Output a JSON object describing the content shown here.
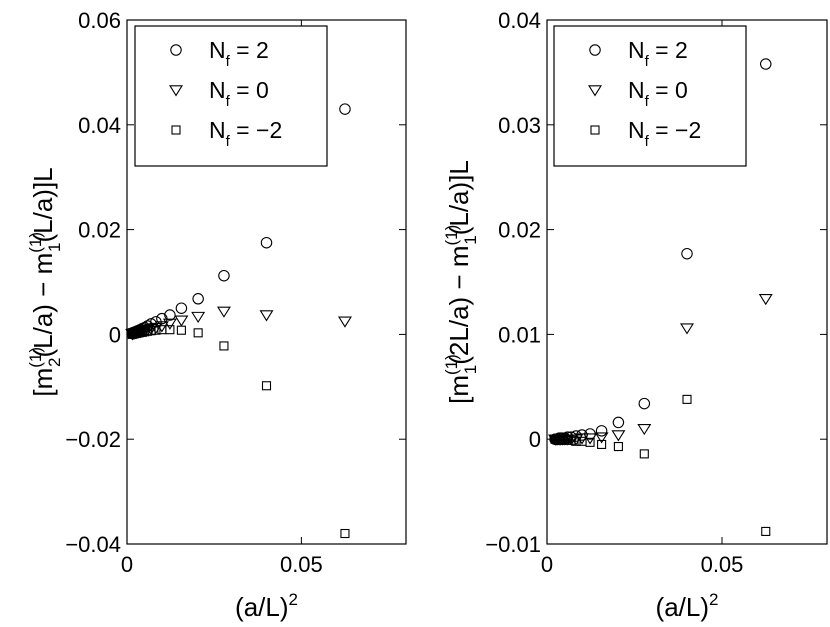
{
  "chart_data": [
    {
      "type": "scatter",
      "xlabel": "(a/L)",
      "xlabel_sup": "2",
      "ylabel_parts": [
        "[m",
        "(1)",
        "2",
        "(L/a) − m",
        "(1)",
        "1",
        "(L/a)]L"
      ],
      "xlim": [
        0,
        0.08
      ],
      "ylim": [
        -0.04,
        0.06
      ],
      "xticks": [
        0,
        0.05
      ],
      "xtick_labels": [
        "0",
        "0.05"
      ],
      "yticks": [
        -0.04,
        -0.02,
        0,
        0.02,
        0.04,
        0.06
      ],
      "ytick_labels": [
        "−0.04",
        "−0.02",
        "0",
        "0.02",
        "0.04",
        "0.06"
      ],
      "legend": {
        "position": "top-left"
      },
      "series": [
        {
          "name": "N_f = 2",
          "name_main": "N",
          "name_sub": "f",
          "name_rest": " = 2",
          "marker": "circle",
          "x": [
            0.0625,
            0.04,
            0.0278,
            0.0204,
            0.0156,
            0.0123,
            0.01,
            0.0083,
            0.0069,
            0.0059,
            0.0051,
            0.0044,
            0.0039,
            0.0035,
            0.0031,
            0.0028,
            0.0025,
            0.0023,
            0.0021,
            0.0019,
            0.0017,
            0.0016,
            0.0015
          ],
          "y": [
            0.043,
            0.0175,
            0.0112,
            0.0068,
            0.005,
            0.0037,
            0.003,
            0.0024,
            0.002,
            0.0016,
            0.0013,
            0.0011,
            0.0009,
            0.0008,
            0.0007,
            0.0006,
            0.0005,
            0.0004,
            0.0004,
            0.0003,
            0.0003,
            0.0003,
            0.0002
          ]
        },
        {
          "name": "N_f = 0",
          "name_main": "N",
          "name_sub": "f",
          "name_rest": " = 0",
          "marker": "triangle-down",
          "x": [
            0.0625,
            0.04,
            0.0278,
            0.0204,
            0.0156,
            0.0123,
            0.01,
            0.0083,
            0.0069,
            0.0059,
            0.0051,
            0.0044,
            0.0039,
            0.0035,
            0.0031,
            0.0028,
            0.0025,
            0.0023,
            0.0021,
            0.0019,
            0.0017,
            0.0016,
            0.0015
          ],
          "y": [
            0.0025,
            0.0037,
            0.0044,
            0.0034,
            0.0027,
            0.0021,
            0.0016,
            0.0013,
            0.0011,
            0.0009,
            0.0008,
            0.0007,
            0.0006,
            0.0005,
            0.0004,
            0.0004,
            0.0003,
            0.0003,
            0.0002,
            0.0002,
            0.0002,
            0.0001,
            0.0001
          ]
        },
        {
          "name": "N_f = −2",
          "name_main": "N",
          "name_sub": "f",
          "name_rest": " = −2",
          "marker": "square",
          "x": [
            0.0625,
            0.04,
            0.0278,
            0.0204,
            0.0156,
            0.0123,
            0.01,
            0.0083,
            0.0069,
            0.0059,
            0.0051,
            0.0044,
            0.0039,
            0.0035,
            0.0031,
            0.0028,
            0.0025,
            0.0023,
            0.0021,
            0.0019,
            0.0017,
            0.0016,
            0.0015
          ],
          "y": [
            -0.038,
            -0.0098,
            -0.0022,
            0.0003,
            0.0008,
            0.0009,
            0.0009,
            0.0008,
            0.0007,
            0.0006,
            0.0005,
            0.0004,
            0.0004,
            0.0003,
            0.0003,
            0.0002,
            0.0002,
            0.0002,
            0.0001,
            0.0001,
            0.0001,
            0.0001,
            0.0
          ]
        }
      ]
    },
    {
      "type": "scatter",
      "xlabel": "(a/L)",
      "xlabel_sup": "2",
      "ylabel_parts": [
        "[m",
        "(1)",
        "1",
        "(2L/a) − m",
        "(1)",
        "1",
        "(L/a)]L"
      ],
      "xlim": [
        0,
        0.08
      ],
      "ylim": [
        -0.01,
        0.04
      ],
      "xticks": [
        0,
        0.05
      ],
      "xtick_labels": [
        "0",
        "0.05"
      ],
      "yticks": [
        -0.01,
        0,
        0.01,
        0.02,
        0.03,
        0.04
      ],
      "ytick_labels": [
        "−0.01",
        "0",
        "0.01",
        "0.02",
        "0.03",
        "0.04"
      ],
      "legend": {
        "position": "top-left"
      },
      "series": [
        {
          "name": "N_f = 2",
          "name_main": "N",
          "name_sub": "f",
          "name_rest": " = 2",
          "marker": "circle",
          "x": [
            0.0625,
            0.04,
            0.0278,
            0.0204,
            0.0156,
            0.0123,
            0.01,
            0.0083,
            0.0069,
            0.0059,
            0.0051,
            0.0044,
            0.0039,
            0.0035,
            0.0031,
            0.0028,
            0.0025,
            0.0023
          ],
          "y": [
            0.0358,
            0.0177,
            0.0034,
            0.0016,
            0.0008,
            0.0005,
            0.0004,
            0.0003,
            0.0002,
            0.0002,
            0.0001,
            0.0001,
            0.0001,
            0.0001,
            0.0,
            0.0,
            0.0,
            0.0
          ]
        },
        {
          "name": "N_f = 0",
          "name_main": "N",
          "name_sub": "f",
          "name_rest": " = 0",
          "marker": "triangle-down",
          "x": [
            0.0625,
            0.04,
            0.0278,
            0.0204,
            0.0156,
            0.0123,
            0.01,
            0.0083,
            0.0069,
            0.0059,
            0.0051,
            0.0044,
            0.0039,
            0.0035,
            0.0031,
            0.0028,
            0.0025,
            0.0023
          ],
          "y": [
            0.0134,
            0.0106,
            0.001,
            0.0004,
            0.0002,
            0.0001,
            0.0001,
            0.0,
            0.0,
            0.0,
            0.0,
            0.0,
            0.0,
            0.0,
            0.0,
            0.0,
            0.0,
            0.0
          ]
        },
        {
          "name": "N_f = −2",
          "name_main": "N",
          "name_sub": "f",
          "name_rest": " = −2",
          "marker": "square",
          "x": [
            0.0625,
            0.04,
            0.0278,
            0.0204,
            0.0156,
            0.0123,
            0.01,
            0.0083,
            0.0069,
            0.0059,
            0.0051,
            0.0044,
            0.0039,
            0.0035,
            0.0031,
            0.0028,
            0.0025,
            0.0023
          ],
          "y": [
            -0.0088,
            0.0038,
            -0.0014,
            -0.0007,
            -0.0005,
            -0.0003,
            -0.0002,
            -0.0002,
            -0.0001,
            -0.0001,
            -0.0001,
            -0.0001,
            0.0,
            0.0,
            0.0,
            0.0,
            0.0,
            0.0
          ]
        }
      ]
    }
  ]
}
